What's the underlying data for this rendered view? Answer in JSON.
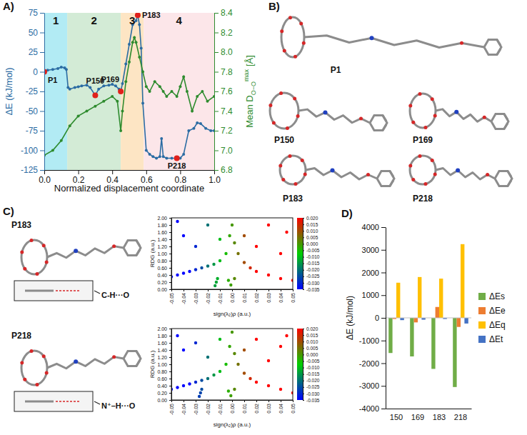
{
  "chart_data": [
    {
      "type": "line",
      "panel": "A)",
      "xlabel": "Normalized displacement coordinate",
      "ylabel": "ΔE (kJ/mol)",
      "y2label": {
        "text": "Mean D",
        "sub": "O−O",
        "sup": "max",
        "unit": "[Å]"
      },
      "xlim": [
        0,
        1
      ],
      "xticks": [
        {
          "value": 0,
          "label": "0.0"
        },
        0.2,
        0.4,
        0.6,
        0.8,
        {
          "value": 1,
          "label": "1.0"
        }
      ],
      "ylim": [
        -125,
        75
      ],
      "yticks": [
        -125,
        -100,
        -75,
        -50,
        -25,
        0,
        25,
        50,
        75
      ],
      "y2lim": [
        6.8,
        8.4
      ],
      "y2ticks": [
        6.8,
        {
          "value": 7,
          "label": "7.0"
        },
        7.2,
        7.4,
        7.6,
        7.8,
        {
          "value": 8,
          "label": "8.0"
        },
        8.2,
        8.4
      ],
      "regions": [
        {
          "label": "1",
          "x0": 0,
          "x1": 0.135,
          "color": "#b2ebf4"
        },
        {
          "label": "2",
          "x0": 0.135,
          "x1": 0.45,
          "color": "#d3ebd6"
        },
        {
          "label": "3",
          "x0": 0.45,
          "x1": 0.585,
          "color": "#fde5c4"
        },
        {
          "label": "4",
          "x0": 0.585,
          "x1": 1,
          "color": "#fce6e9"
        }
      ],
      "series": [
        {
          "color": "#2b6ca3",
          "marker": "circle",
          "x": [
            0,
            0.02,
            0.05,
            0.08,
            0.1,
            0.12,
            0.13,
            0.14,
            0.15,
            0.18,
            0.2,
            0.22,
            0.25,
            0.27,
            0.3,
            0.32,
            0.35,
            0.38,
            0.4,
            0.42,
            0.44,
            0.45,
            0.46,
            0.48,
            0.5,
            0.52,
            0.54,
            0.55,
            0.56,
            0.57,
            0.58,
            0.6,
            0.62,
            0.64,
            0.66,
            0.68,
            0.69,
            0.7,
            0.72,
            0.75,
            0.78,
            0.8,
            0.82,
            0.85,
            0.88,
            0.9,
            0.92,
            0.95,
            0.98,
            1
          ],
          "values": [
            0,
            2,
            3,
            4,
            6,
            5,
            3,
            -20,
            -22,
            -20,
            -19,
            -18,
            -17,
            -20,
            -30,
            -22,
            -18,
            -17,
            -16,
            -18,
            -22,
            -25,
            -15,
            10,
            35,
            60,
            65,
            72,
            60,
            30,
            -40,
            -100,
            -105,
            -108,
            -110,
            -108,
            -85,
            -108,
            -110,
            -110,
            -110,
            -110,
            -105,
            -75,
            -72,
            -65,
            -66,
            -72,
            -75,
            -75
          ]
        },
        {
          "color": "#2e8b2e",
          "marker": "circle",
          "axis": "y2",
          "x": [
            0,
            0.05,
            0.1,
            0.15,
            0.2,
            0.25,
            0.3,
            0.35,
            0.4,
            0.43,
            0.45,
            0.46,
            0.48,
            0.5,
            0.52,
            0.53,
            0.54,
            0.56,
            0.58,
            0.6,
            0.62,
            0.65,
            0.68,
            0.7,
            0.72,
            0.75,
            0.78,
            0.8,
            0.82,
            0.84,
            0.87,
            0.9,
            0.93,
            0.96,
            1
          ],
          "values": [
            6.95,
            7.0,
            7.1,
            7.25,
            7.35,
            7.4,
            7.45,
            7.5,
            7.55,
            7.5,
            7.2,
            7.4,
            7.7,
            7.9,
            8.1,
            8.15,
            8.1,
            7.95,
            7.8,
            7.65,
            7.6,
            7.7,
            7.65,
            7.6,
            7.55,
            7.6,
            7.55,
            7.65,
            7.75,
            7.6,
            7.4,
            7.55,
            7.6,
            7.5,
            7.55
          ]
        }
      ],
      "points": [
        {
          "label": "P1",
          "x": 0,
          "y": 0,
          "color": "#e0201b"
        },
        {
          "label": "P150",
          "x": 0.3,
          "y": -30,
          "color": "#e0201b"
        },
        {
          "label": "P169",
          "x": 0.45,
          "y": -25,
          "color": "#e0201b"
        },
        {
          "label": "P183",
          "x": 0.55,
          "y": 72,
          "color": "#e0201b"
        },
        {
          "label": "P218",
          "x": 0.78,
          "y": -110,
          "color": "#e0201b"
        }
      ]
    },
    {
      "type": "scatter",
      "panel": "C)",
      "label": "P183",
      "annotation": "C-H···O",
      "xlabel": "sign(λ₂)ρ (a.u.)",
      "ylabel": "RDG (a.u.)",
      "xlim": [
        -0.05,
        0.05
      ],
      "xticks": [
        -0.05,
        -0.04,
        -0.03,
        -0.02,
        -0.01,
        {
          "value": 0,
          "label": "0.00"
        },
        0.01,
        0.02,
        0.03,
        0.04,
        0.05
      ],
      "ylim": [
        0,
        2
      ],
      "yticks": [
        {
          "value": 0,
          "label": "0.00"
        },
        {
          "value": 0.2,
          "label": "0.20"
        },
        {
          "value": 0.4,
          "label": "0.40"
        },
        {
          "value": 0.6,
          "label": "0.60"
        },
        {
          "value": 0.8,
          "label": "0.80"
        },
        {
          "value": 1,
          "label": "1.00"
        },
        {
          "value": 1.2,
          "label": "1.20"
        },
        {
          "value": 1.4,
          "label": "1.40"
        },
        {
          "value": 1.6,
          "label": "1.60"
        },
        {
          "value": 1.8,
          "label": "1.80"
        },
        {
          "value": 2,
          "label": "2.00"
        }
      ],
      "colorbar": {
        "range": [
          -0.035,
          0.02
        ],
        "ticks": [
          {
            "value": 0.02,
            "label": "0.020"
          },
          0.015,
          {
            "value": 0.01,
            "label": "0.010"
          },
          0.005,
          {
            "value": 0,
            "label": "0.000"
          },
          -0.005,
          {
            "value": -0.01,
            "label": "-0.010"
          },
          -0.015,
          {
            "value": -0.02,
            "label": "-0.020"
          },
          -0.025,
          {
            "value": -0.03,
            "label": "-0.030"
          },
          -0.035
        ]
      },
      "x": [
        -0.05,
        -0.045,
        -0.04,
        -0.035,
        -0.03,
        -0.025,
        -0.02,
        -0.015,
        -0.01,
        -0.005,
        -0.014,
        -0.013,
        -0.012,
        -0.003,
        -0.001,
        0.002,
        0.005,
        0.01,
        0.015,
        0.02,
        0.03,
        0.04,
        0.05,
        -0.045,
        -0.04,
        -0.03,
        -0.02,
        -0.01,
        -0.002,
        0,
        0.002,
        0.01,
        0.02,
        0.03,
        0.04,
        0.045
      ],
      "values": [
        0.35,
        0.4,
        0.45,
        0.5,
        0.55,
        0.6,
        0.65,
        0.7,
        0.8,
        1.0,
        0.1,
        0.2,
        0.3,
        0.25,
        0.12,
        0.3,
        1.0,
        0.75,
        0.6,
        0.5,
        0.4,
        0.3,
        0.25,
        1.9,
        1.5,
        1.2,
        1.8,
        1.4,
        1.5,
        1.8,
        1.3,
        1.5,
        1.2,
        1.8,
        1.0,
        1.6
      ]
    },
    {
      "type": "scatter",
      "label": "P218",
      "annotation": "N⁺–H···O",
      "xlabel": "sign(λ₂)ρ (a.u.)",
      "ylabel": "RDG (a.u.)",
      "xlim": [
        -0.05,
        0.05
      ],
      "xticks": [
        -0.05,
        -0.04,
        -0.03,
        -0.02,
        -0.01,
        {
          "value": 0,
          "label": "0.00"
        },
        0.01,
        0.02,
        0.03,
        0.04,
        0.05
      ],
      "ylim": [
        0,
        2
      ],
      "yticks": [
        {
          "value": 0,
          "label": "0.00"
        },
        {
          "value": 0.2,
          "label": "0.20"
        },
        {
          "value": 0.4,
          "label": "0.40"
        },
        {
          "value": 0.6,
          "label": "0.60"
        },
        {
          "value": 0.8,
          "label": "0.80"
        },
        {
          "value": 1,
          "label": "1.00"
        },
        {
          "value": 1.2,
          "label": "1.20"
        },
        {
          "value": 1.4,
          "label": "1.40"
        },
        {
          "value": 1.6,
          "label": "1.60"
        },
        {
          "value": 1.8,
          "label": "1.80"
        },
        {
          "value": 2,
          "label": "2.00"
        }
      ],
      "colorbar": {
        "range": [
          -0.035,
          0.02
        ],
        "ticks": [
          {
            "value": 0.02,
            "label": "0.020"
          },
          0.015,
          {
            "value": 0.01,
            "label": "0.010"
          },
          0.005,
          {
            "value": 0,
            "label": "0.000"
          },
          -0.005,
          {
            "value": -0.01,
            "label": "-0.010"
          },
          -0.015,
          {
            "value": -0.02,
            "label": "-0.020"
          },
          -0.025,
          {
            "value": -0.03,
            "label": "-0.030"
          },
          -0.035
        ]
      },
      "x": [
        -0.05,
        -0.045,
        -0.04,
        -0.035,
        -0.03,
        -0.025,
        -0.02,
        -0.015,
        -0.01,
        -0.005,
        -0.027,
        -0.026,
        -0.025,
        -0.003,
        -0.001,
        0.002,
        0.005,
        0.01,
        0.015,
        0.02,
        0.03,
        0.04,
        0.05,
        -0.045,
        -0.04,
        -0.03,
        -0.02,
        -0.01,
        -0.002,
        0,
        0.002,
        0.01,
        0.02,
        0.03,
        0.04,
        0.045
      ],
      "values": [
        0.3,
        0.35,
        0.4,
        0.45,
        0.5,
        0.55,
        0.6,
        0.7,
        0.8,
        1.0,
        0.1,
        0.2,
        0.3,
        0.25,
        0.12,
        0.3,
        1.0,
        0.75,
        0.6,
        0.5,
        0.4,
        0.3,
        0.2,
        1.8,
        1.4,
        1.6,
        1.2,
        1.7,
        1.5,
        1.9,
        1.3,
        1.4,
        1.7,
        1.1,
        1.5,
        1.8
      ]
    },
    {
      "type": "bar",
      "panel": "D)",
      "ylabel": "ΔE (kJ/mol)",
      "categories": [
        "150",
        "169",
        "183",
        "218"
      ],
      "ylim": [
        -4000,
        4000
      ],
      "yticks": [
        -4000,
        -3000,
        -2000,
        -1000,
        0,
        1000,
        2000,
        3000,
        4000
      ],
      "grid": false,
      "legend": "right",
      "series": [
        {
          "name": "ΔEs",
          "color": "#70ad47",
          "values": [
            -1550,
            -1700,
            -2250,
            -3050
          ]
        },
        {
          "name": "ΔEe",
          "color": "#ed7d31",
          "values": [
            -50,
            -200,
            480,
            -400
          ]
        },
        {
          "name": "ΔEq",
          "color": "#ffc000",
          "values": [
            1550,
            1800,
            1730,
            3250
          ]
        },
        {
          "name": "ΔEt",
          "color": "#4472c4",
          "values": [
            -100,
            -80,
            -50,
            -250
          ]
        }
      ]
    }
  ],
  "molecules": {
    "panel": "B)",
    "labels": [
      "P1",
      "P150",
      "P169",
      "P183",
      "P218"
    ]
  }
}
